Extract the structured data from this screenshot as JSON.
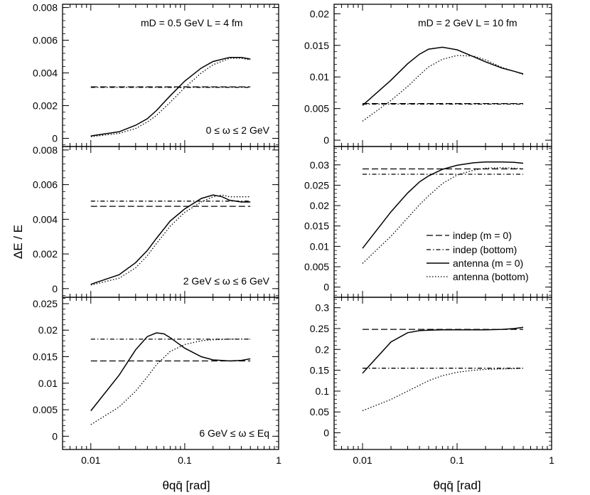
{
  "figure": {
    "ylabel": "ΔE / E",
    "xlabel_left": "θqq̄ [rad]",
    "xlabel_right": "θqq̄ [rad]",
    "x_scale": "log",
    "xlim": [
      0.005,
      1
    ],
    "x_ticks": [
      "0.01",
      "0.1",
      "1"
    ]
  },
  "legend": {
    "entries": [
      "indep (m = 0)",
      "indep (bottom)",
      "antenna (m = 0)",
      "antenna (bottom)"
    ],
    "placement": "middle-right panel, lower right"
  },
  "chart_data": [
    {
      "id": "p00",
      "type": "line",
      "xscale": "log",
      "ylim": [
        -0.0005,
        0.0082
      ],
      "header": "mD = 0.5 GeV  L = 4 fm",
      "range_label": "0 ≤ ω ≤ 2 GeV",
      "y_ticks": [
        "0",
        "0.002",
        "0.004",
        "0.006",
        "0.008"
      ],
      "series": [
        {
          "name": "indep (m = 0)",
          "style": "dashed",
          "x": [
            0.01,
            0.5
          ],
          "y": [
            0.00315,
            0.00315
          ]
        },
        {
          "name": "indep (bottom)",
          "style": "dashdot",
          "x": [
            0.01,
            0.5
          ],
          "y": [
            0.00312,
            0.00312
          ]
        },
        {
          "name": "antenna (m = 0)",
          "style": "solid",
          "x": [
            0.01,
            0.02,
            0.03,
            0.04,
            0.05,
            0.07,
            0.1,
            0.15,
            0.2,
            0.3,
            0.4,
            0.5
          ],
          "y": [
            0.00015,
            0.0004,
            0.0008,
            0.0012,
            0.0017,
            0.0026,
            0.0035,
            0.0043,
            0.0047,
            0.00495,
            0.00495,
            0.00485
          ]
        },
        {
          "name": "antenna (bottom)",
          "style": "dotted",
          "x": [
            0.01,
            0.02,
            0.03,
            0.04,
            0.05,
            0.07,
            0.1,
            0.15,
            0.2,
            0.3,
            0.4,
            0.5
          ],
          "y": [
            0.0001,
            0.0003,
            0.0006,
            0.001,
            0.0014,
            0.0022,
            0.0031,
            0.004,
            0.0045,
            0.0049,
            0.0049,
            0.0048
          ]
        }
      ]
    },
    {
      "id": "p01",
      "type": "line",
      "xscale": "log",
      "ylim": [
        -0.001,
        0.0215
      ],
      "header": "mD = 2 GeV  L = 10 fm",
      "range_label": "",
      "y_ticks": [
        "0",
        "0.005",
        "0.01",
        "0.015",
        "0.02"
      ],
      "series": [
        {
          "name": "indep (m = 0)",
          "style": "dashed",
          "x": [
            0.01,
            0.5
          ],
          "y": [
            0.0058,
            0.0058
          ]
        },
        {
          "name": "indep (bottom)",
          "style": "dashdot",
          "x": [
            0.01,
            0.5
          ],
          "y": [
            0.0057,
            0.0057
          ]
        },
        {
          "name": "antenna (m = 0)",
          "style": "solid",
          "x": [
            0.01,
            0.02,
            0.03,
            0.04,
            0.05,
            0.07,
            0.1,
            0.15,
            0.2,
            0.3,
            0.4,
            0.5
          ],
          "y": [
            0.0055,
            0.0095,
            0.0121,
            0.0136,
            0.0144,
            0.0147,
            0.0143,
            0.0132,
            0.0124,
            0.0114,
            0.0109,
            0.0105
          ]
        },
        {
          "name": "antenna (bottom)",
          "style": "dotted",
          "x": [
            0.01,
            0.02,
            0.03,
            0.04,
            0.05,
            0.07,
            0.1,
            0.15,
            0.2,
            0.3,
            0.4,
            0.5
          ],
          "y": [
            0.003,
            0.0063,
            0.0085,
            0.0103,
            0.0116,
            0.0128,
            0.0134,
            0.0133,
            0.0127,
            0.0115,
            0.0109,
            0.0104
          ]
        }
      ]
    },
    {
      "id": "p10",
      "type": "line",
      "xscale": "log",
      "ylim": [
        -0.0005,
        0.0082
      ],
      "header": "",
      "range_label": "2 GeV ≤ ω ≤ 6 GeV",
      "y_ticks": [
        "0",
        "0.002",
        "0.004",
        "0.006",
        "0.008"
      ],
      "series": [
        {
          "name": "indep (m = 0)",
          "style": "dashed",
          "x": [
            0.01,
            0.5
          ],
          "y": [
            0.00475,
            0.00475
          ]
        },
        {
          "name": "indep (bottom)",
          "style": "dashdot",
          "x": [
            0.01,
            0.5
          ],
          "y": [
            0.00505,
            0.00505
          ]
        },
        {
          "name": "antenna (m = 0)",
          "style": "solid",
          "x": [
            0.01,
            0.02,
            0.03,
            0.04,
            0.05,
            0.07,
            0.1,
            0.15,
            0.2,
            0.25,
            0.3,
            0.4,
            0.5
          ],
          "y": [
            0.00025,
            0.0008,
            0.0015,
            0.0022,
            0.0029,
            0.0039,
            0.0046,
            0.0052,
            0.0054,
            0.0053,
            0.0051,
            0.005,
            0.005
          ]
        },
        {
          "name": "antenna (bottom)",
          "style": "dotted",
          "x": [
            0.01,
            0.02,
            0.03,
            0.04,
            0.05,
            0.07,
            0.1,
            0.15,
            0.2,
            0.25,
            0.3,
            0.4,
            0.5
          ],
          "y": [
            0.0002,
            0.0006,
            0.0012,
            0.0019,
            0.0026,
            0.0036,
            0.0044,
            0.005,
            0.0053,
            0.0054,
            0.0053,
            0.0053,
            0.0053
          ]
        }
      ]
    },
    {
      "id": "p11",
      "type": "line",
      "xscale": "log",
      "ylim": [
        -0.0025,
        0.0345
      ],
      "header": "",
      "range_label": "",
      "y_ticks": [
        "0",
        "0.005",
        "0.01",
        "0.015",
        "0.02",
        "0.025",
        "0.03"
      ],
      "series": [
        {
          "name": "indep (m = 0)",
          "style": "dashed",
          "x": [
            0.01,
            0.5
          ],
          "y": [
            0.029,
            0.029
          ]
        },
        {
          "name": "indep (bottom)",
          "style": "dashdot",
          "x": [
            0.01,
            0.5
          ],
          "y": [
            0.0277,
            0.0277
          ]
        },
        {
          "name": "antenna (m = 0)",
          "style": "solid",
          "x": [
            0.01,
            0.02,
            0.03,
            0.04,
            0.05,
            0.07,
            0.1,
            0.15,
            0.2,
            0.3,
            0.4,
            0.5
          ],
          "y": [
            0.0095,
            0.0185,
            0.0231,
            0.0258,
            0.0273,
            0.0289,
            0.0299,
            0.0305,
            0.0307,
            0.0307,
            0.0306,
            0.0304
          ]
        },
        {
          "name": "antenna (bottom)",
          "style": "dotted",
          "x": [
            0.01,
            0.02,
            0.03,
            0.04,
            0.05,
            0.07,
            0.1,
            0.15,
            0.2,
            0.3,
            0.4,
            0.5
          ],
          "y": [
            0.0058,
            0.0125,
            0.017,
            0.0202,
            0.0224,
            0.0254,
            0.0275,
            0.0287,
            0.0292,
            0.0293,
            0.0292,
            0.029
          ]
        }
      ]
    },
    {
      "id": "p20",
      "type": "line",
      "xscale": "log",
      "ylim": [
        -0.0025,
        0.0262
      ],
      "header": "",
      "range_label": "6 GeV ≤ ω ≤ Eq",
      "y_ticks": [
        "0",
        "0.005",
        "0.01",
        "0.015",
        "0.02",
        "0.025"
      ],
      "series": [
        {
          "name": "indep (m = 0)",
          "style": "dashed",
          "x": [
            0.01,
            0.5
          ],
          "y": [
            0.0142,
            0.0142
          ]
        },
        {
          "name": "indep (bottom)",
          "style": "dashdot",
          "x": [
            0.01,
            0.5
          ],
          "y": [
            0.0183,
            0.0183
          ]
        },
        {
          "name": "antenna (m = 0)",
          "style": "solid",
          "x": [
            0.01,
            0.02,
            0.03,
            0.04,
            0.05,
            0.06,
            0.07,
            0.1,
            0.15,
            0.2,
            0.3,
            0.4,
            0.5
          ],
          "y": [
            0.0048,
            0.0115,
            0.0163,
            0.0188,
            0.0195,
            0.0193,
            0.0186,
            0.0166,
            0.015,
            0.0144,
            0.0142,
            0.0143,
            0.0146
          ]
        },
        {
          "name": "antenna (bottom)",
          "style": "dotted",
          "x": [
            0.01,
            0.02,
            0.03,
            0.04,
            0.05,
            0.07,
            0.1,
            0.15,
            0.2,
            0.3,
            0.4,
            0.5
          ],
          "y": [
            0.0022,
            0.0055,
            0.0085,
            0.0112,
            0.0135,
            0.016,
            0.0173,
            0.018,
            0.0182,
            0.0183,
            0.0183,
            0.0183
          ]
        }
      ]
    },
    {
      "id": "p21",
      "type": "line",
      "xscale": "log",
      "ylim": [
        -0.04,
        0.325
      ],
      "header": "",
      "range_label": "",
      "y_ticks": [
        "0",
        "0.05",
        "0.1",
        "0.15",
        "0.2",
        "0.25",
        "0.3"
      ],
      "series": [
        {
          "name": "indep (m = 0)",
          "style": "dashed",
          "x": [
            0.01,
            0.5
          ],
          "y": [
            0.248,
            0.248
          ]
        },
        {
          "name": "indep (bottom)",
          "style": "dashdot",
          "x": [
            0.01,
            0.5
          ],
          "y": [
            0.155,
            0.155
          ]
        },
        {
          "name": "antenna (m = 0)",
          "style": "solid",
          "x": [
            0.01,
            0.02,
            0.03,
            0.04,
            0.05,
            0.07,
            0.1,
            0.2,
            0.3,
            0.4,
            0.5
          ],
          "y": [
            0.143,
            0.218,
            0.24,
            0.245,
            0.246,
            0.247,
            0.247,
            0.247,
            0.248,
            0.25,
            0.253
          ]
        },
        {
          "name": "antenna (bottom)",
          "style": "dotted",
          "x": [
            0.01,
            0.02,
            0.03,
            0.04,
            0.05,
            0.07,
            0.1,
            0.15,
            0.2,
            0.3,
            0.4,
            0.5
          ],
          "y": [
            0.053,
            0.08,
            0.1,
            0.114,
            0.125,
            0.137,
            0.145,
            0.15,
            0.152,
            0.153,
            0.154,
            0.155
          ]
        }
      ]
    }
  ]
}
